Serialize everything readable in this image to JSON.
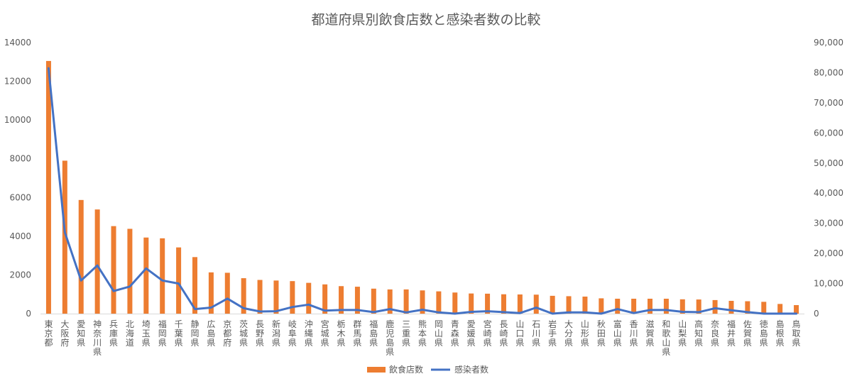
{
  "chart_data": {
    "type": "bar",
    "title": "都道府県別飲食店数と感染者数の比較",
    "categories": [
      "東京都",
      "大阪府",
      "愛知県",
      "神奈川県",
      "兵庫県",
      "北海道",
      "埼玉県",
      "福岡県",
      "千葉県",
      "静岡県",
      "広島県",
      "京都府",
      "茨城県",
      "長野県",
      "新潟県",
      "岐阜県",
      "沖縄県",
      "宮城県",
      "栃木県",
      "群馬県",
      "福島県",
      "鹿児島県",
      "三重県",
      "熊本県",
      "岡山県",
      "青森県",
      "愛媛県",
      "宮崎県",
      "長崎県",
      "山口県",
      "石川県",
      "岩手県",
      "大分県",
      "山形県",
      "秋田県",
      "富山県",
      "香川県",
      "滋賀県",
      "和歌山県",
      "山梨県",
      "高知県",
      "奈良県",
      "福井県",
      "佐賀県",
      "徳島県",
      "島根県",
      "鳥取県"
    ],
    "series": [
      {
        "name": "飲食店数",
        "type": "bar",
        "axis": "left",
        "color": "#ED7D31",
        "values": [
          13050,
          7900,
          5870,
          5380,
          4520,
          4380,
          3930,
          3890,
          3420,
          2920,
          2130,
          2110,
          1830,
          1740,
          1710,
          1680,
          1590,
          1510,
          1420,
          1390,
          1290,
          1250,
          1250,
          1200,
          1150,
          1090,
          1040,
          1030,
          1000,
          990,
          980,
          920,
          900,
          880,
          790,
          770,
          770,
          770,
          770,
          740,
          730,
          700,
          660,
          640,
          610,
          500,
          440
        ]
      },
      {
        "name": "感染者数",
        "type": "line",
        "axis": "right",
        "color": "#4472C4",
        "values": [
          81500,
          27000,
          11000,
          16000,
          7500,
          9000,
          15000,
          11000,
          10000,
          1500,
          2000,
          5000,
          1800,
          700,
          800,
          2200,
          3000,
          1000,
          1200,
          1200,
          500,
          1500,
          400,
          1300,
          400,
          0,
          600,
          800,
          500,
          200,
          2000,
          0,
          400,
          400,
          0,
          1500,
          200,
          1200,
          1200,
          600,
          500,
          1800,
          1100,
          500,
          0,
          0,
          0
        ]
      }
    ],
    "y_left": {
      "min": 0,
      "max": 14000,
      "ticks": [
        "0",
        "2000",
        "4000",
        "6000",
        "8000",
        "10000",
        "12000",
        "14000"
      ]
    },
    "y_right": {
      "min": 0,
      "max": 90000,
      "ticks": [
        "0",
        "10,000",
        "20,000",
        "30,000",
        "40,000",
        "50,000",
        "60,000",
        "70,000",
        "80,000",
        "90,000"
      ]
    },
    "grid": false,
    "legend_position": "bottom"
  }
}
